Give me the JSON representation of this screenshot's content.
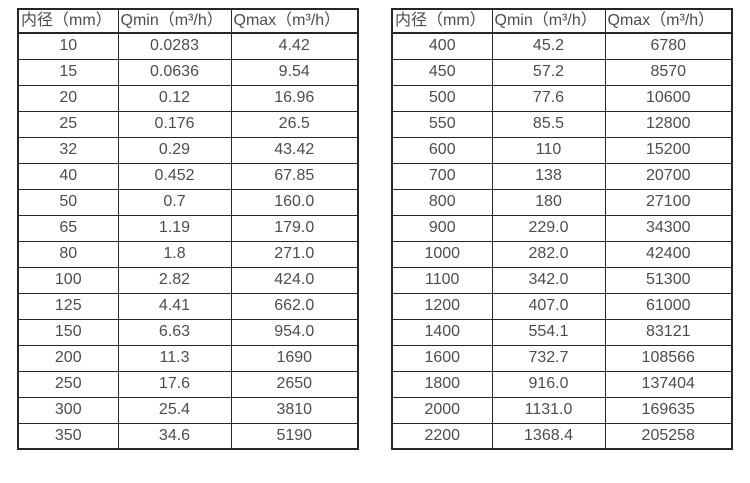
{
  "colors": {
    "background": "#ffffff",
    "table_border": "#262626",
    "text": "#4d4d4d"
  },
  "tables": [
    {
      "id": "small-diameters",
      "headers": [
        "内径（mm）",
        "Qmin（m³/h）",
        "Qmax（m³/h）"
      ],
      "rows": [
        [
          "10",
          "0.0283",
          "4.42"
        ],
        [
          "15",
          "0.0636",
          "9.54"
        ],
        [
          "20",
          "0.12",
          "16.96"
        ],
        [
          "25",
          "0.176",
          "26.5"
        ],
        [
          "32",
          "0.29",
          "43.42"
        ],
        [
          "40",
          "0.452",
          "67.85"
        ],
        [
          "50",
          "0.7",
          "160.0"
        ],
        [
          "65",
          "1.19",
          "179.0"
        ],
        [
          "80",
          "1.8",
          "271.0"
        ],
        [
          "100",
          "2.82",
          "424.0"
        ],
        [
          "125",
          "4.41",
          "662.0"
        ],
        [
          "150",
          "6.63",
          "954.0"
        ],
        [
          "200",
          "11.3",
          "1690"
        ],
        [
          "250",
          "17.6",
          "2650"
        ],
        [
          "300",
          "25.4",
          "3810"
        ],
        [
          "350",
          "34.6",
          "5190"
        ]
      ]
    },
    {
      "id": "large-diameters",
      "headers": [
        "内径（mm）",
        "Qmin（m³/h）",
        "Qmax（m³/h）"
      ],
      "rows": [
        [
          "400",
          "45.2",
          "6780"
        ],
        [
          "450",
          "57.2",
          "8570"
        ],
        [
          "500",
          "77.6",
          "10600"
        ],
        [
          "550",
          "85.5",
          "12800"
        ],
        [
          "600",
          "110",
          "15200"
        ],
        [
          "700",
          "138",
          "20700"
        ],
        [
          "800",
          "180",
          "27100"
        ],
        [
          "900",
          "229.0",
          "34300"
        ],
        [
          "1000",
          "282.0",
          "42400"
        ],
        [
          "1100",
          "342.0",
          "51300"
        ],
        [
          "1200",
          "407.0",
          "61000"
        ],
        [
          "1400",
          "554.1",
          "83121"
        ],
        [
          "1600",
          "732.7",
          "108566"
        ],
        [
          "1800",
          "916.0",
          "137404"
        ],
        [
          "2000",
          "1131.0",
          "169635"
        ],
        [
          "2200",
          "1368.4",
          "205258"
        ]
      ]
    }
  ]
}
